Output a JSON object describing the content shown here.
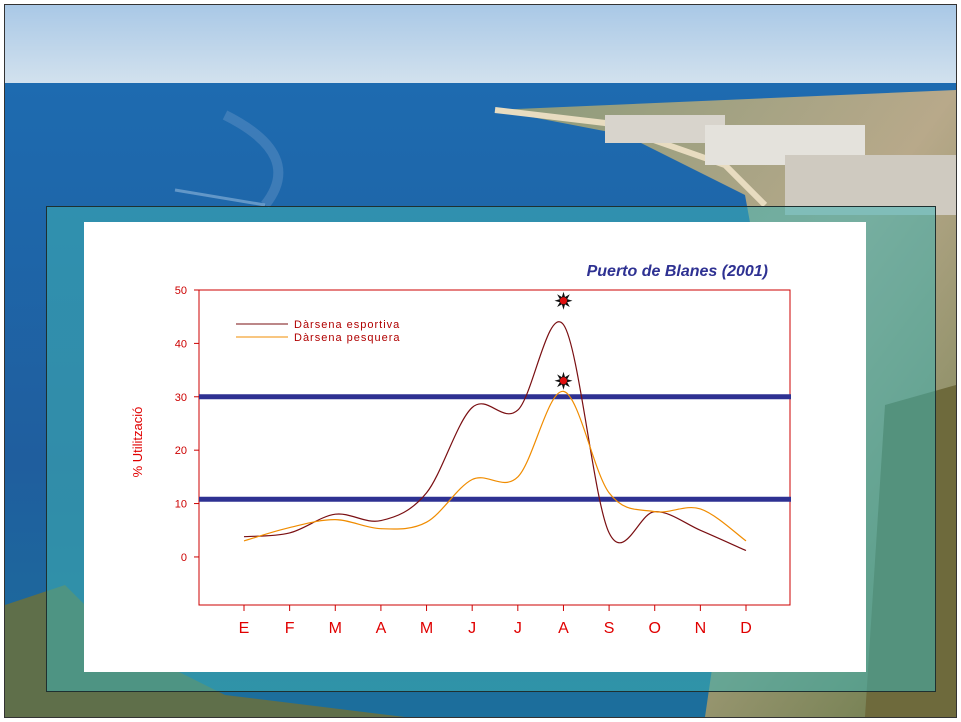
{
  "colors": {
    "axis": "#cc0000",
    "threshold": "#2e3192",
    "series_esportiva": "#7a0f12",
    "series_pesquera": "#f08c00",
    "marker_fill": "#e01010",
    "marker_outline": "#111111"
  },
  "chart_data": {
    "type": "line",
    "title": "Puerto de Blanes (2001)",
    "xlabel": "",
    "ylabel": "% Utilització",
    "categories": [
      "E",
      "F",
      "M",
      "A",
      "M",
      "J",
      "J",
      "A",
      "S",
      "O",
      "N",
      "D"
    ],
    "ylim": [
      -9,
      50
    ],
    "yticks": [
      0,
      10,
      20,
      30,
      40,
      50
    ],
    "grid": false,
    "legend": "top-left",
    "series": [
      {
        "name": "Dàrsena esportiva",
        "values": [
          3.8,
          4.5,
          8.0,
          6.8,
          12.0,
          28.0,
          27.5,
          43.5,
          4.5,
          8.5,
          5.0,
          1.2
        ]
      },
      {
        "name": "Dàrsena pesquera",
        "values": [
          3.0,
          5.5,
          7.0,
          5.3,
          6.5,
          14.5,
          15.0,
          31.0,
          12.0,
          8.5,
          9.0,
          3.0
        ]
      }
    ],
    "reference_lines": [
      30,
      10.8
    ],
    "markers": [
      {
        "category": "A",
        "value": 48
      },
      {
        "category": "A",
        "value": 33
      }
    ]
  }
}
